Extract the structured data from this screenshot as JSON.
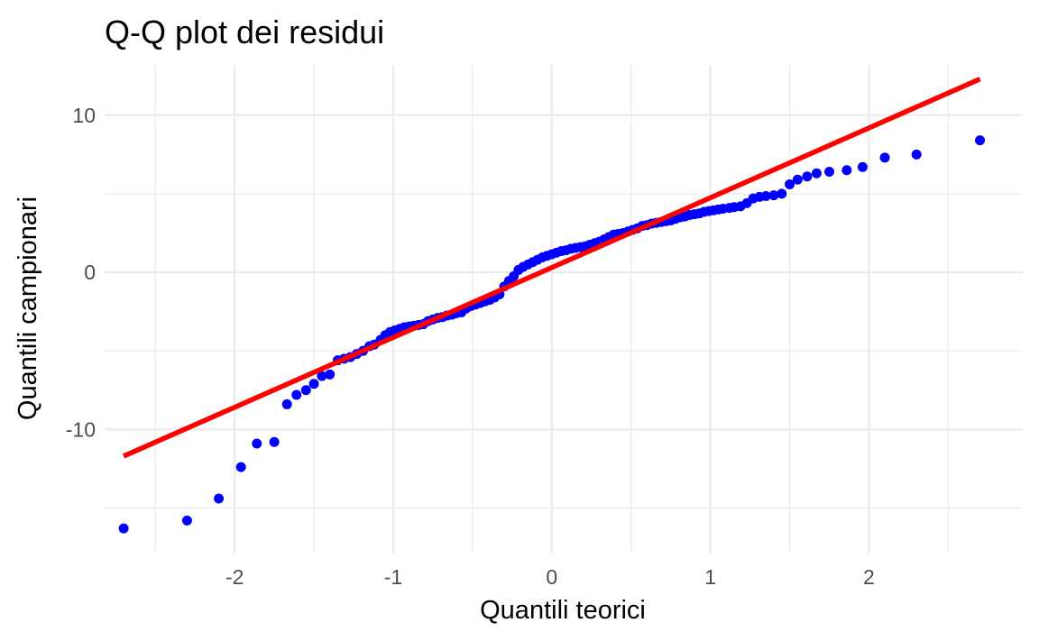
{
  "chart_data": {
    "type": "scatter",
    "title": "Q-Q plot dei residui",
    "xlabel": "Quantili teorici",
    "ylabel": "Quantili campionari",
    "xlim": [
      -2.82,
      2.97
    ],
    "ylim": [
      -17.9,
      13.2
    ],
    "x_ticks": [
      -2,
      -1,
      0,
      1,
      2
    ],
    "x_tick_labels": [
      "-2",
      "-1",
      "0",
      "1",
      "2"
    ],
    "y_ticks": [
      -10,
      0,
      10
    ],
    "y_tick_labels": [
      "-10",
      "0",
      "10"
    ],
    "grid": true,
    "point_color": "#0000ff",
    "line_color": "#ff0000",
    "reference_line": {
      "x": [
        -2.7,
        2.7
      ],
      "y": [
        -11.7,
        12.3
      ]
    },
    "series": [
      {
        "points": [
          [
            -2.7,
            -16.3
          ],
          [
            -2.3,
            -15.8
          ],
          [
            -2.1,
            -14.4
          ],
          [
            -1.96,
            -12.4
          ],
          [
            -1.86,
            -10.9
          ],
          [
            -1.75,
            -10.8
          ],
          [
            -1.67,
            -8.4
          ],
          [
            -1.61,
            -7.8
          ],
          [
            -1.55,
            -7.5
          ],
          [
            -1.5,
            -7.1
          ],
          [
            -1.45,
            -6.6
          ],
          [
            -1.4,
            -6.5
          ],
          [
            -1.35,
            -5.6
          ],
          [
            -1.31,
            -5.5
          ],
          [
            -1.27,
            -5.4
          ],
          [
            -1.23,
            -5.2
          ],
          [
            -1.19,
            -5.0
          ],
          [
            -1.15,
            -4.7
          ],
          [
            -1.12,
            -4.6
          ],
          [
            -1.08,
            -4.3
          ],
          [
            -1.05,
            -4.0
          ],
          [
            -1.02,
            -3.8
          ],
          [
            -0.99,
            -3.7
          ],
          [
            -0.96,
            -3.6
          ],
          [
            -0.93,
            -3.5
          ],
          [
            -0.9,
            -3.45
          ],
          [
            -0.87,
            -3.4
          ],
          [
            -0.84,
            -3.35
          ],
          [
            -0.81,
            -3.3
          ],
          [
            -0.78,
            -3.1
          ],
          [
            -0.75,
            -3.0
          ],
          [
            -0.72,
            -2.9
          ],
          [
            -0.69,
            -2.85
          ],
          [
            -0.66,
            -2.75
          ],
          [
            -0.63,
            -2.7
          ],
          [
            -0.6,
            -2.6
          ],
          [
            -0.57,
            -2.55
          ],
          [
            -0.54,
            -2.3
          ],
          [
            -0.51,
            -2.15
          ],
          [
            -0.48,
            -2.05
          ],
          [
            -0.45,
            -1.95
          ],
          [
            -0.42,
            -1.85
          ],
          [
            -0.39,
            -1.75
          ],
          [
            -0.36,
            -1.6
          ],
          [
            -0.33,
            -1.4
          ],
          [
            -0.3,
            -0.9
          ],
          [
            -0.27,
            -0.55
          ],
          [
            -0.24,
            -0.25
          ],
          [
            -0.21,
            0.15
          ],
          [
            -0.18,
            0.35
          ],
          [
            -0.15,
            0.5
          ],
          [
            -0.12,
            0.65
          ],
          [
            -0.09,
            0.8
          ],
          [
            -0.06,
            0.95
          ],
          [
            -0.03,
            1.05
          ],
          [
            0.0,
            1.15
          ],
          [
            0.03,
            1.25
          ],
          [
            0.06,
            1.35
          ],
          [
            0.09,
            1.4
          ],
          [
            0.12,
            1.5
          ],
          [
            0.15,
            1.55
          ],
          [
            0.18,
            1.6
          ],
          [
            0.21,
            1.65
          ],
          [
            0.24,
            1.75
          ],
          [
            0.27,
            1.85
          ],
          [
            0.3,
            1.95
          ],
          [
            0.33,
            2.1
          ],
          [
            0.36,
            2.25
          ],
          [
            0.39,
            2.4
          ],
          [
            0.42,
            2.45
          ],
          [
            0.45,
            2.5
          ],
          [
            0.48,
            2.6
          ],
          [
            0.51,
            2.7
          ],
          [
            0.54,
            2.8
          ],
          [
            0.57,
            2.95
          ],
          [
            0.6,
            3.0
          ],
          [
            0.63,
            3.1
          ],
          [
            0.66,
            3.15
          ],
          [
            0.69,
            3.2
          ],
          [
            0.72,
            3.25
          ],
          [
            0.75,
            3.3
          ],
          [
            0.78,
            3.4
          ],
          [
            0.81,
            3.5
          ],
          [
            0.84,
            3.55
          ],
          [
            0.87,
            3.65
          ],
          [
            0.9,
            3.7
          ],
          [
            0.93,
            3.75
          ],
          [
            0.96,
            3.85
          ],
          [
            0.99,
            3.9
          ],
          [
            1.02,
            3.95
          ],
          [
            1.05,
            4.0
          ],
          [
            1.08,
            4.05
          ],
          [
            1.12,
            4.1
          ],
          [
            1.15,
            4.15
          ],
          [
            1.19,
            4.2
          ],
          [
            1.23,
            4.4
          ],
          [
            1.27,
            4.7
          ],
          [
            1.31,
            4.8
          ],
          [
            1.35,
            4.85
          ],
          [
            1.4,
            4.9
          ],
          [
            1.45,
            5.0
          ],
          [
            1.5,
            5.6
          ],
          [
            1.55,
            5.9
          ],
          [
            1.61,
            6.1
          ],
          [
            1.67,
            6.3
          ],
          [
            1.75,
            6.4
          ],
          [
            1.86,
            6.5
          ],
          [
            1.96,
            6.7
          ],
          [
            2.1,
            7.3
          ],
          [
            2.3,
            7.5
          ],
          [
            2.7,
            8.4
          ]
        ]
      }
    ]
  }
}
